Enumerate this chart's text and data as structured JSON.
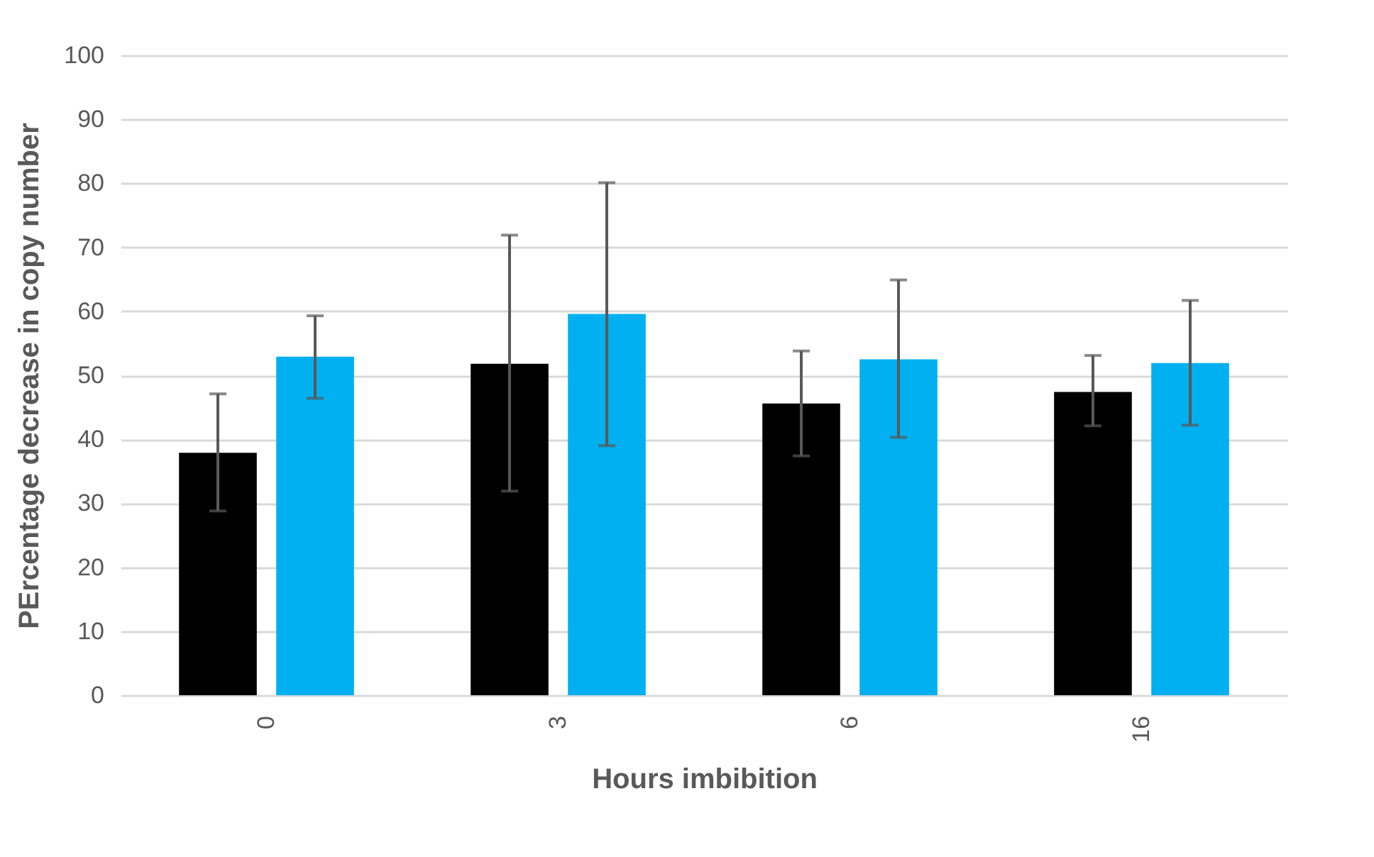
{
  "chart_data": {
    "type": "bar",
    "xlabel": "Hours imbibition",
    "ylabel": "PErcentage decrease in copy number",
    "categories": [
      "0",
      "3",
      "6",
      "16"
    ],
    "series": [
      {
        "color": "#000000",
        "values": [
          37.9,
          51.8,
          45.6,
          47.4
        ],
        "errors": [
          [
            28.8,
            47.1
          ],
          [
            31.9,
            71.9
          ],
          [
            37.4,
            53.8
          ],
          [
            42.1,
            53.1
          ]
        ]
      },
      {
        "color": "#00b0f0",
        "values": [
          52.9,
          59.6,
          52.5,
          51.9
        ],
        "errors": [
          [
            46.4,
            59.3
          ],
          [
            39.0,
            80.1
          ],
          [
            40.3,
            64.9
          ],
          [
            42.2,
            61.7
          ]
        ]
      }
    ],
    "ylim": [
      0,
      100
    ],
    "yticks": [
      0,
      10,
      20,
      30,
      40,
      50,
      60,
      70,
      80,
      90,
      100
    ],
    "grid": "y",
    "legend": false
  }
}
